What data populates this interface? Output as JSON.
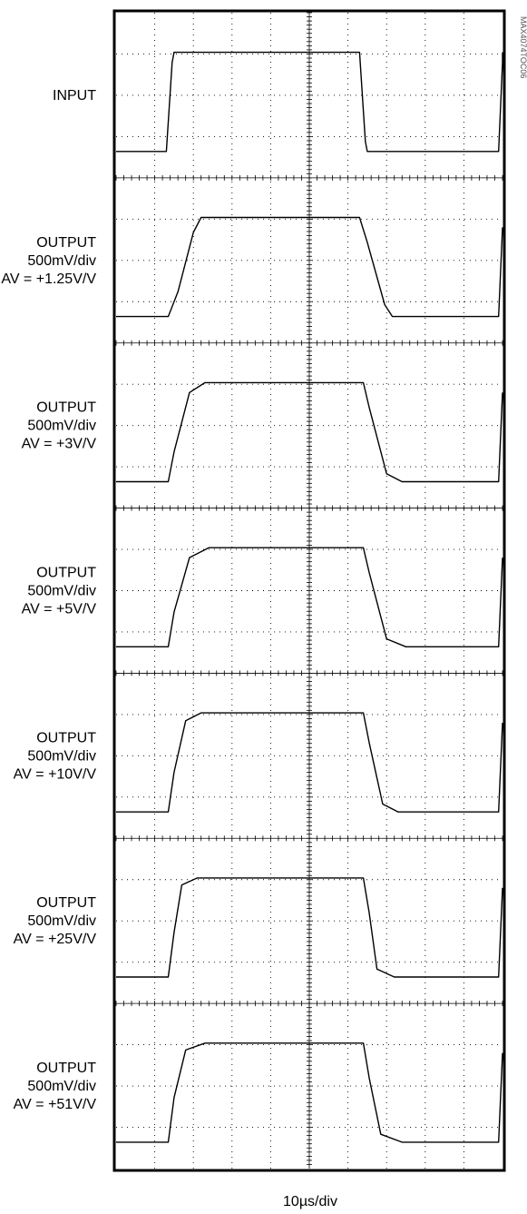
{
  "figure_id": "MAX4074TOC06",
  "chart_data": {
    "type": "line",
    "title": "",
    "xlabel": "10µs/div",
    "x_divisions": 10,
    "grid": true,
    "channels": [
      {
        "name": "INPUT",
        "label_lines": [
          "INPUT"
        ],
        "x_div": [
          0,
          1.3,
          1.45,
          1.5,
          6.3,
          6.45,
          6.5,
          9.9,
          10.05,
          10.1,
          10.5
        ],
        "y_level": [
          0,
          0,
          0.9,
          1,
          1,
          0.1,
          0,
          0,
          0.9,
          1,
          1
        ]
      },
      {
        "name": "OUTPUT 500mV/div AV = +1.25V/V",
        "label_lines": [
          "OUTPUT",
          "500mV/div",
          "AV = +1.25V/V"
        ],
        "x_div": [
          0,
          1.35,
          1.6,
          2.0,
          2.2,
          6.3,
          6.5,
          6.95,
          7.15,
          9.9,
          10.5
        ],
        "y_level": [
          0,
          0,
          0.25,
          0.85,
          1,
          1,
          0.75,
          0.12,
          0,
          0,
          0.9
        ]
      },
      {
        "name": "OUTPUT 500mV/div AV = +3V/V",
        "label_lines": [
          "OUTPUT",
          "500mV/div",
          "AV = +3V/V"
        ],
        "x_div": [
          0,
          1.35,
          1.5,
          1.9,
          2.3,
          6.4,
          6.55,
          7.0,
          7.4,
          9.9,
          10.5
        ],
        "y_level": [
          0,
          0,
          0.3,
          0.9,
          1,
          1,
          0.75,
          0.08,
          0,
          0,
          0.9
        ]
      },
      {
        "name": "OUTPUT 500mV/div AV = +5V/V",
        "label_lines": [
          "OUTPUT",
          "500mV/div",
          "AV = +5V/V"
        ],
        "x_div": [
          0,
          1.35,
          1.5,
          1.9,
          2.4,
          6.4,
          6.55,
          7.0,
          7.5,
          9.9,
          10.5
        ],
        "y_level": [
          0,
          0,
          0.35,
          0.9,
          1,
          1,
          0.75,
          0.08,
          0,
          0,
          0.9
        ]
      },
      {
        "name": "OUTPUT 500mV/div AV = +10V/V",
        "label_lines": [
          "OUTPUT",
          "500mV/div",
          "AV = +10V/V"
        ],
        "x_div": [
          0,
          1.35,
          1.5,
          1.8,
          2.2,
          6.4,
          6.55,
          6.9,
          7.3,
          9.9,
          10.5
        ],
        "y_level": [
          0,
          0,
          0.4,
          0.92,
          1,
          1,
          0.7,
          0.08,
          0,
          0,
          0.9
        ]
      },
      {
        "name": "OUTPUT 500mV/div AV = +25V/V",
        "label_lines": [
          "OUTPUT",
          "500mV/div",
          "AV = +25V/V"
        ],
        "x_div": [
          0,
          1.35,
          1.5,
          1.7,
          2.1,
          6.4,
          6.55,
          6.75,
          7.2,
          9.9,
          10.5
        ],
        "y_level": [
          0,
          0,
          0.45,
          0.93,
          1,
          1,
          0.65,
          0.08,
          0,
          0,
          0.9
        ]
      },
      {
        "name": "OUTPUT 500mV/div AV = +51V/V",
        "label_lines": [
          "OUTPUT",
          "500mV/div",
          "AV = +51V/V"
        ],
        "x_div": [
          0,
          1.35,
          1.5,
          1.8,
          2.3,
          6.4,
          6.55,
          6.85,
          7.4,
          9.9,
          10.5
        ],
        "y_level": [
          0,
          0,
          0.45,
          0.93,
          1,
          1,
          0.65,
          0.08,
          0,
          0,
          0.9
        ]
      }
    ]
  }
}
